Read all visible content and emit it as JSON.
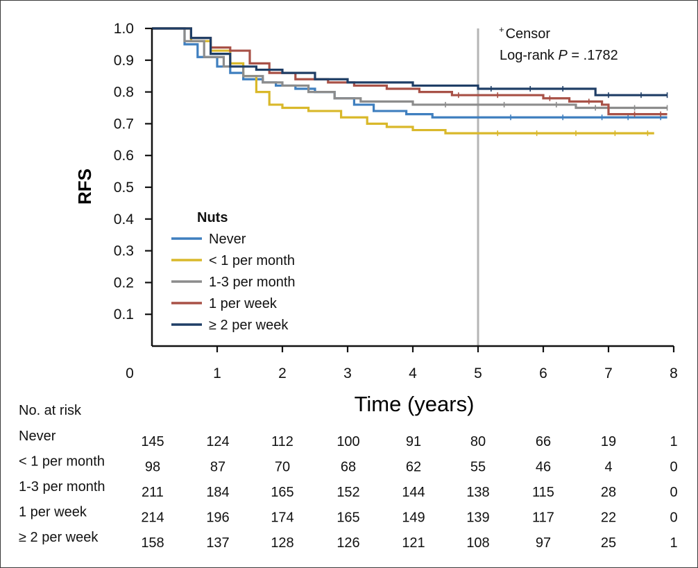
{
  "chart_data": {
    "type": "line",
    "subtype": "kaplan-meier",
    "title": "",
    "xlabel": "Time (years)",
    "ylabel": "RFS",
    "xlim": [
      0,
      8
    ],
    "ylim": [
      0,
      1.0
    ],
    "x_ticks": [
      0,
      1,
      2,
      3,
      4,
      5,
      6,
      7,
      8
    ],
    "x_tick_labels": [
      "0",
      "1",
      "2",
      "3",
      "4",
      "5",
      "6",
      "7",
      "8"
    ],
    "y_ticks": [
      1.0,
      0.9,
      0.8,
      0.7,
      0.6,
      0.5,
      0.4,
      0.3,
      0.2,
      0.1
    ],
    "y_tick_labels": [
      "1.0",
      "0.9",
      "0.8",
      "0.7",
      "0.6",
      "0.5",
      "0.4",
      "0.3",
      "0.2",
      "0.1"
    ],
    "reference_line_x": 5,
    "annotations": {
      "censor_symbol": "+",
      "censor_label": "Censor",
      "logrank_prefix": "Log-rank ",
      "logrank_p": "P",
      "logrank_value": " = .1782"
    },
    "legend": {
      "title": "Nuts",
      "position": "center-left"
    },
    "series": [
      {
        "name": "Never",
        "color": "#3f7fbf",
        "points": [
          [
            0,
            1.0
          ],
          [
            0.3,
            1.0
          ],
          [
            0.5,
            0.95
          ],
          [
            0.7,
            0.91
          ],
          [
            1.0,
            0.88
          ],
          [
            1.2,
            0.86
          ],
          [
            1.4,
            0.84
          ],
          [
            1.7,
            0.83
          ],
          [
            1.9,
            0.82
          ],
          [
            2.2,
            0.81
          ],
          [
            2.5,
            0.8
          ],
          [
            2.8,
            0.78
          ],
          [
            3.1,
            0.76
          ],
          [
            3.4,
            0.74
          ],
          [
            3.9,
            0.73
          ],
          [
            4.3,
            0.72
          ],
          [
            5.0,
            0.72
          ],
          [
            6.0,
            0.72
          ],
          [
            7.0,
            0.72
          ],
          [
            7.9,
            0.72
          ]
        ],
        "censor_times": [
          5.5,
          6.3,
          6.9,
          7.3,
          7.8
        ]
      },
      {
        "name": "< 1 per month",
        "color": "#d9b82a",
        "points": [
          [
            0,
            1.0
          ],
          [
            0.3,
            1.0
          ],
          [
            0.6,
            0.96
          ],
          [
            0.9,
            0.93
          ],
          [
            1.2,
            0.89
          ],
          [
            1.4,
            0.85
          ],
          [
            1.6,
            0.8
          ],
          [
            1.8,
            0.76
          ],
          [
            2.0,
            0.75
          ],
          [
            2.4,
            0.74
          ],
          [
            2.9,
            0.72
          ],
          [
            3.3,
            0.7
          ],
          [
            3.6,
            0.69
          ],
          [
            4.0,
            0.68
          ],
          [
            4.5,
            0.67
          ],
          [
            5.0,
            0.67
          ],
          [
            6.0,
            0.67
          ],
          [
            7.0,
            0.67
          ],
          [
            7.7,
            0.67
          ]
        ],
        "censor_times": [
          5.3,
          5.9,
          6.5,
          7.1,
          7.6
        ]
      },
      {
        "name": "1-3 per month",
        "color": "#8c8c8c",
        "points": [
          [
            0,
            1.0
          ],
          [
            0.3,
            1.0
          ],
          [
            0.5,
            0.96
          ],
          [
            0.8,
            0.91
          ],
          [
            1.1,
            0.88
          ],
          [
            1.4,
            0.85
          ],
          [
            1.7,
            0.83
          ],
          [
            2.0,
            0.82
          ],
          [
            2.4,
            0.8
          ],
          [
            2.8,
            0.78
          ],
          [
            3.2,
            0.77
          ],
          [
            3.7,
            0.77
          ],
          [
            4.0,
            0.76
          ],
          [
            5.0,
            0.76
          ],
          [
            6.0,
            0.76
          ],
          [
            6.5,
            0.75
          ],
          [
            7.0,
            0.75
          ],
          [
            7.9,
            0.75
          ]
        ],
        "censor_times": [
          4.5,
          5.4,
          6.2,
          6.8,
          7.4,
          7.9
        ]
      },
      {
        "name": "1 per week",
        "color": "#a85147",
        "points": [
          [
            0,
            1.0
          ],
          [
            0.3,
            1.0
          ],
          [
            0.6,
            0.97
          ],
          [
            0.9,
            0.94
          ],
          [
            1.2,
            0.93
          ],
          [
            1.5,
            0.89
          ],
          [
            1.8,
            0.86
          ],
          [
            2.2,
            0.84
          ],
          [
            2.7,
            0.83
          ],
          [
            3.1,
            0.82
          ],
          [
            3.6,
            0.81
          ],
          [
            4.1,
            0.8
          ],
          [
            4.6,
            0.79
          ],
          [
            5.0,
            0.79
          ],
          [
            5.5,
            0.79
          ],
          [
            6.0,
            0.78
          ],
          [
            6.4,
            0.77
          ],
          [
            6.9,
            0.76
          ],
          [
            7.0,
            0.73
          ],
          [
            7.9,
            0.73
          ]
        ],
        "censor_times": [
          4.7,
          5.3,
          6.1,
          6.7,
          7.4,
          7.8
        ]
      },
      {
        "name": "≥ 2 per week",
        "color": "#1f3e66",
        "points": [
          [
            0,
            1.0
          ],
          [
            0.3,
            1.0
          ],
          [
            0.6,
            0.97
          ],
          [
            0.9,
            0.92
          ],
          [
            1.2,
            0.88
          ],
          [
            1.6,
            0.87
          ],
          [
            2.0,
            0.86
          ],
          [
            2.5,
            0.84
          ],
          [
            3.0,
            0.83
          ],
          [
            3.5,
            0.83
          ],
          [
            4.0,
            0.82
          ],
          [
            4.5,
            0.82
          ],
          [
            5.0,
            0.81
          ],
          [
            5.5,
            0.81
          ],
          [
            6.0,
            0.81
          ],
          [
            6.6,
            0.81
          ],
          [
            6.8,
            0.79
          ],
          [
            7.9,
            0.79
          ]
        ],
        "censor_times": [
          5.2,
          5.8,
          6.3,
          7.0,
          7.5,
          7.9
        ]
      }
    ],
    "risk_table": {
      "title": "No. at risk",
      "rows": [
        {
          "label": "Never",
          "values": [
            "145",
            "124",
            "112",
            "100",
            "91",
            "80",
            "66",
            "19",
            "1"
          ]
        },
        {
          "label": "< 1 per month",
          "values": [
            "98",
            "87",
            "70",
            "68",
            "62",
            "55",
            "46",
            "4",
            "0"
          ]
        },
        {
          "label": "1-3 per month",
          "values": [
            "211",
            "184",
            "165",
            "152",
            "144",
            "138",
            "115",
            "28",
            "0"
          ]
        },
        {
          "label": "1 per week",
          "values": [
            "214",
            "196",
            "174",
            "165",
            "149",
            "139",
            "117",
            "22",
            "0"
          ]
        },
        {
          "label": "≥ 2 per week",
          "values": [
            "158",
            "137",
            "128",
            "126",
            "121",
            "108",
            "97",
            "25",
            "1"
          ]
        }
      ]
    }
  }
}
